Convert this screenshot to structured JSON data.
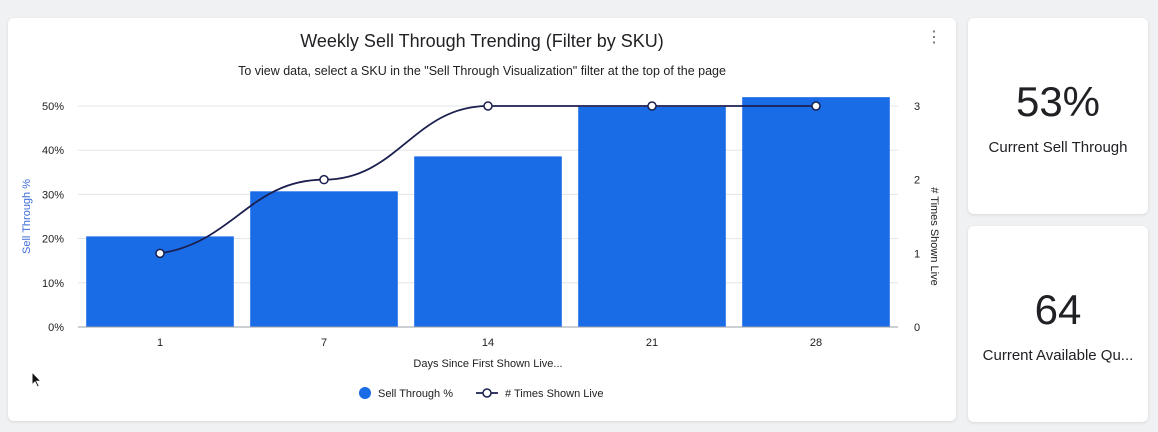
{
  "chart_card": {
    "title": "Weekly Sell Through Trending (Filter by SKU)",
    "subtitle": "To view data, select a SKU in the \"Sell Through Visualization\" filter at the top of the page",
    "menu_icon": "more-vert-icon"
  },
  "kpis": [
    {
      "value": "53%",
      "label": "Current Sell Through"
    },
    {
      "value": "64",
      "label": "Current Available Qu..."
    }
  ],
  "colors": {
    "bar": "#1a6be6",
    "line": "#1a1f4e",
    "grid": "#e3e5e8",
    "axis_label": "#3c6cd8",
    "text": "#202124"
  },
  "chart_data": {
    "type": "bar",
    "categories": [
      "1",
      "7",
      "14",
      "21",
      "28"
    ],
    "xlabel": "Days Since First Shown Live...",
    "ylabel": "Sell Through %",
    "y2label": "# Times Shown Live",
    "ylim": [
      0,
      0.5
    ],
    "y_ticks": [
      "0%",
      "10%",
      "20%",
      "30%",
      "40%",
      "50%"
    ],
    "y2lim": [
      0,
      3
    ],
    "y2_ticks": [
      "0",
      "1",
      "2",
      "3"
    ],
    "grid": true,
    "legend_position": "bottom",
    "series": [
      {
        "name": "Sell Through %",
        "type": "bar",
        "axis": "left",
        "values": [
          0.205,
          0.307,
          0.386,
          0.498,
          0.52
        ]
      },
      {
        "name": "# Times Shown Live",
        "type": "line",
        "axis": "right",
        "values": [
          1,
          2,
          3,
          3,
          3
        ]
      }
    ]
  }
}
